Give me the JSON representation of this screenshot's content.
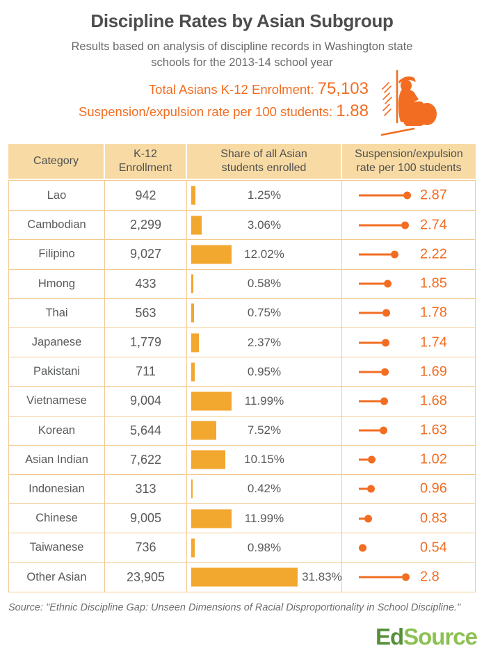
{
  "chart_data": {
    "type": "table",
    "title": "Discipline Rates by Asian Subgroup",
    "subtitle": "Results based on analysis of discipline records in Washington state\nschools for the 2013-14 school year",
    "annotations": [
      {
        "label": "Total Asians K-12 Enrolment:",
        "value": "75,103"
      },
      {
        "label": "Suspension/expulsion rate per 100 students:",
        "value": "1.88"
      }
    ],
    "columns": [
      "Category",
      "K-12\nEnrollment",
      "Share of all Asian\nstudents enrolled",
      "Suspension/expulsion\nrate per 100 students"
    ],
    "rows": [
      {
        "category": "Lao",
        "enrollment": "942",
        "share_pct": 1.25,
        "share_label": "1.25%",
        "rate": 2.87,
        "rate_label": "2.87"
      },
      {
        "category": "Cambodian",
        "enrollment": "2,299",
        "share_pct": 3.06,
        "share_label": "3.06%",
        "rate": 2.74,
        "rate_label": "2.74"
      },
      {
        "category": "Filipino",
        "enrollment": "9,027",
        "share_pct": 12.02,
        "share_label": "12.02%",
        "rate": 2.22,
        "rate_label": "2.22"
      },
      {
        "category": "Hmong",
        "enrollment": "433",
        "share_pct": 0.58,
        "share_label": "0.58%",
        "rate": 1.85,
        "rate_label": "1.85"
      },
      {
        "category": "Thai",
        "enrollment": "563",
        "share_pct": 0.75,
        "share_label": "0.75%",
        "rate": 1.78,
        "rate_label": "1.78"
      },
      {
        "category": "Japanese",
        "enrollment": "1,779",
        "share_pct": 2.37,
        "share_label": "2.37%",
        "rate": 1.74,
        "rate_label": "1.74"
      },
      {
        "category": "Pakistani",
        "enrollment": "711",
        "share_pct": 0.95,
        "share_label": "0.95%",
        "rate": 1.69,
        "rate_label": "1.69"
      },
      {
        "category": "Vietnamese",
        "enrollment": "9,004",
        "share_pct": 11.99,
        "share_label": "11.99%",
        "rate": 1.68,
        "rate_label": "1.68"
      },
      {
        "category": "Korean",
        "enrollment": "5,644",
        "share_pct": 7.52,
        "share_label": "7.52%",
        "rate": 1.63,
        "rate_label": "1.63"
      },
      {
        "category": "Asian Indian",
        "enrollment": "7,622",
        "share_pct": 10.15,
        "share_label": "10.15%",
        "rate": 1.02,
        "rate_label": "1.02"
      },
      {
        "category": "Indonesian",
        "enrollment": "313",
        "share_pct": 0.42,
        "share_label": "0.42%",
        "rate": 0.96,
        "rate_label": "0.96"
      },
      {
        "category": "Chinese",
        "enrollment": "9,005",
        "share_pct": 11.99,
        "share_label": "11.99%",
        "rate": 0.83,
        "rate_label": "0.83"
      },
      {
        "category": "Taiwanese",
        "enrollment": "736",
        "share_pct": 0.98,
        "share_label": "0.98%",
        "rate": 0.54,
        "rate_label": "0.54"
      },
      {
        "category": "Other Asian",
        "enrollment": "23,905",
        "share_pct": 31.83,
        "share_label": "31.83%",
        "rate": 2.8,
        "rate_label": "2.8"
      }
    ],
    "share_value_range": [
      0.42,
      31.83
    ],
    "rate_value_range": [
      0.54,
      2.87
    ]
  },
  "icons": {
    "student": "suspended-student-sitting-against-wall-icon"
  },
  "footer": {
    "source": "Source: \"Ethnic Discipline Gap: Unseen Dimensions of Racial Disproportionality in School Discipline.\"",
    "logo": {
      "part1": "Ed",
      "part2": "Source"
    }
  },
  "colors": {
    "accent_orange": "#F26D22",
    "bar_amber": "#F2A72F",
    "header_bg": "#F8DBA4",
    "table_border": "#F2C98E",
    "text_dark": "#4E4F51",
    "text_gray": "#6A6B6E",
    "logo_green_dark": "#569039",
    "logo_green_light": "#8CC152"
  }
}
